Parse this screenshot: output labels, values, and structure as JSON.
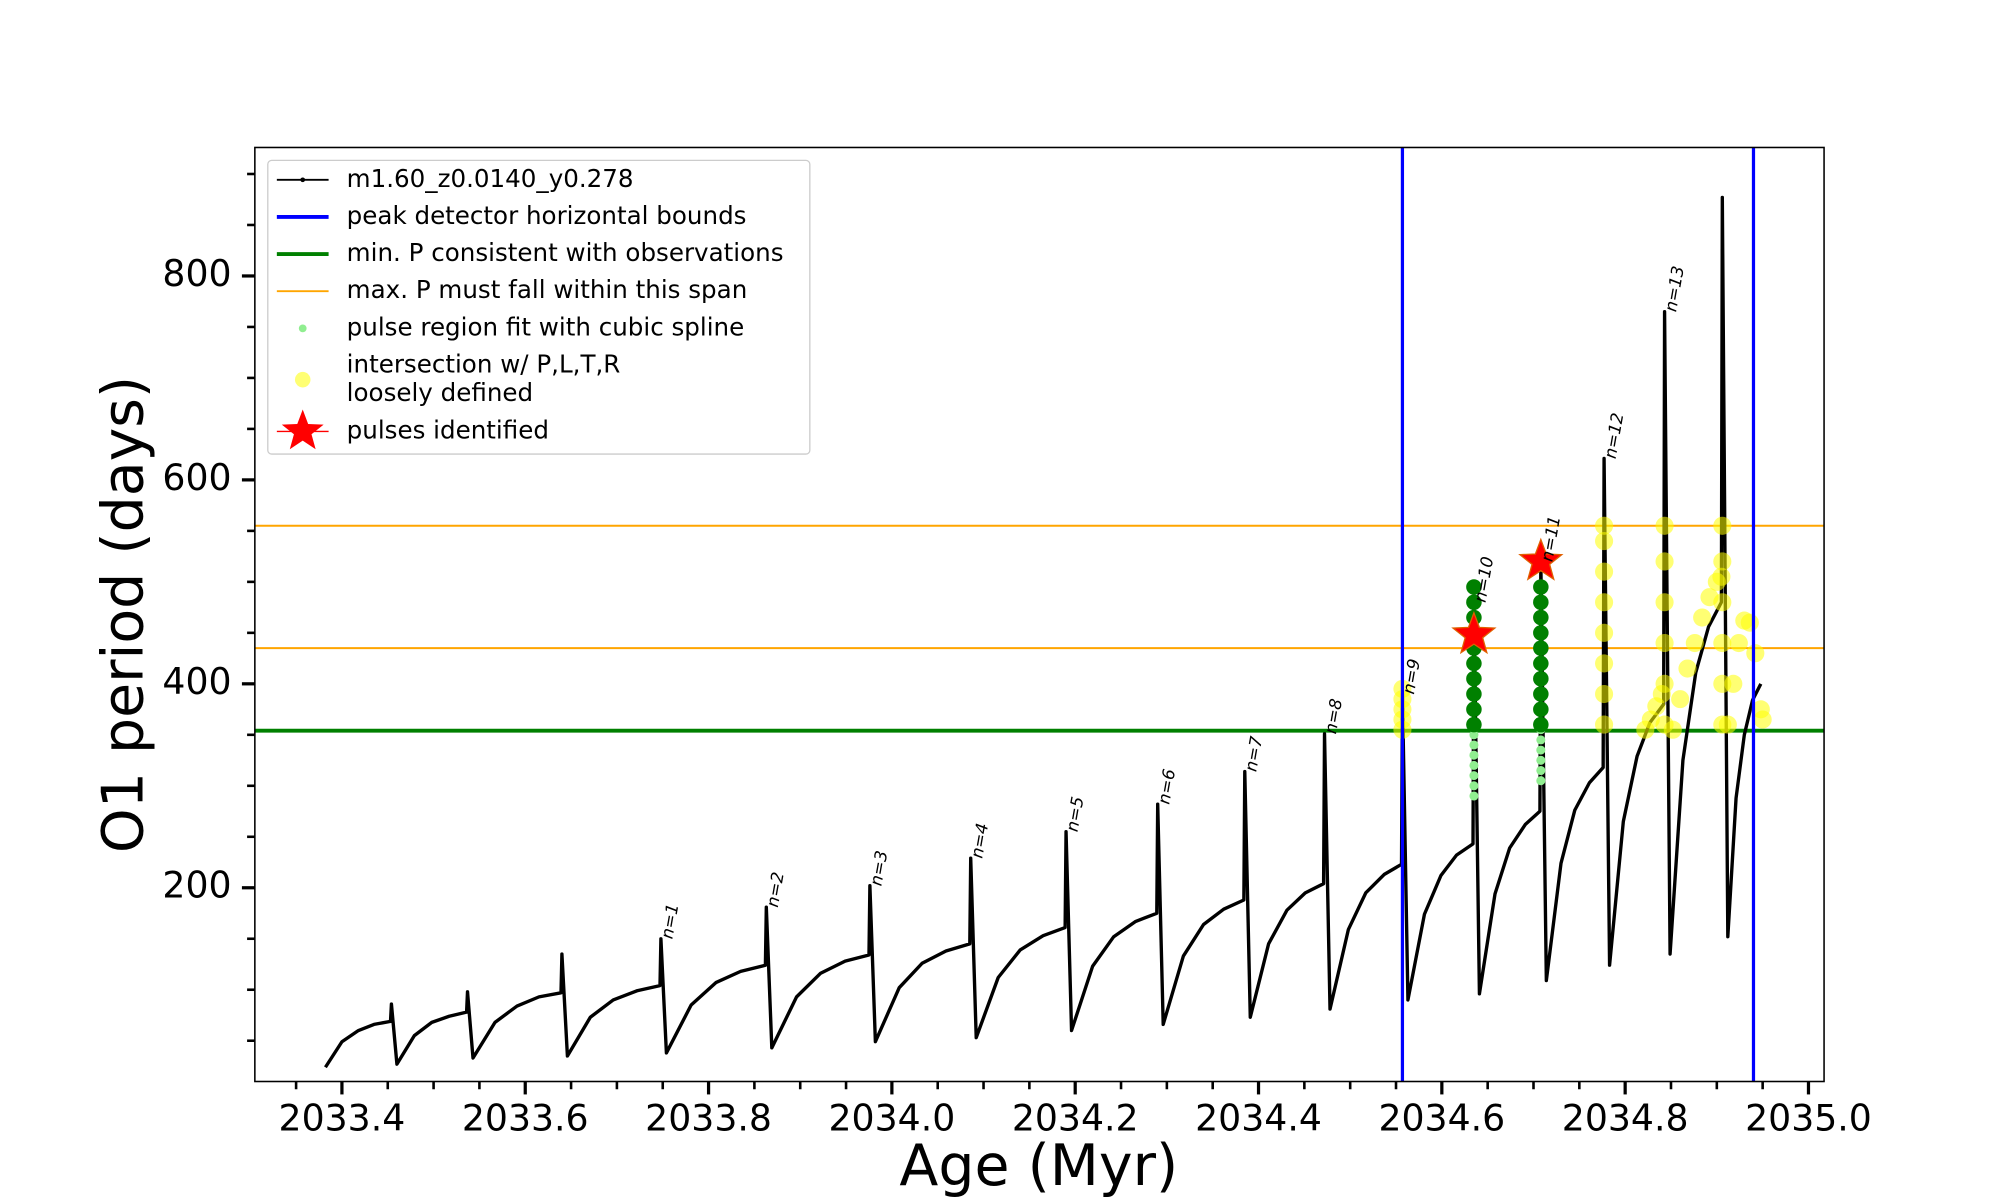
{
  "chart_data": {
    "type": "line",
    "x_label": "Age (Myr)",
    "y_label": "O1 period (days)",
    "xlim": [
      2033.305,
      2035.017
    ],
    "ylim": [
      10,
      926
    ],
    "xticks": [
      2033.4,
      2033.6,
      2033.8,
      {
        "value": 2034.0,
        "label": "2034.0"
      },
      2034.2,
      2034.4,
      2034.6,
      2034.8,
      {
        "value": 2035.0,
        "label": "2035.0"
      }
    ],
    "xminorticks": [
      2033.35,
      2033.45,
      2033.5,
      2033.55,
      2033.65,
      2033.7,
      2033.75,
      2033.85,
      2033.9,
      2033.95,
      2034.05,
      2034.1,
      2034.15,
      2034.25,
      2034.3,
      2034.35,
      2034.45,
      2034.5,
      2034.55,
      2034.65,
      2034.7,
      2034.75,
      2034.85,
      2034.9,
      2034.95
    ],
    "yticks": [
      200,
      400,
      600,
      800
    ],
    "yminorticks": [
      50,
      100,
      150,
      250,
      300,
      350,
      450,
      500,
      550,
      650,
      700,
      750,
      850,
      900
    ],
    "grid": false,
    "legend": "upper left",
    "series": [
      {
        "name": "m1.60_z0.0140_y0.278",
        "kind": "line",
        "color": "#000000",
        "x": [
          2033.382,
          2033.4,
          2033.418,
          2033.435,
          2033.453,
          2033.454,
          2033.46,
          2033.479,
          2033.498,
          2033.517,
          2033.536,
          2033.537,
          2033.543,
          2033.567,
          2033.591,
          2033.615,
          2033.639,
          2033.64,
          2033.646,
          2033.671,
          2033.696,
          2033.722,
          2033.747,
          2033.748,
          2033.754,
          2033.781,
          2033.808,
          2033.835,
          2033.862,
          2033.863,
          2033.869,
          2033.896,
          2033.922,
          2033.949,
          2033.975,
          2033.976,
          2033.982,
          2034.008,
          2034.033,
          2034.059,
          2034.085,
          2034.086,
          2034.092,
          2034.116,
          2034.14,
          2034.165,
          2034.189,
          2034.19,
          2034.196,
          2034.219,
          2034.242,
          2034.266,
          2034.289,
          2034.29,
          2034.296,
          2034.318,
          2034.34,
          2034.362,
          2034.384,
          2034.385,
          2034.391,
          2034.411,
          2034.431,
          2034.451,
          2034.471,
          2034.472,
          2034.478,
          2034.498,
          2034.517,
          2034.537,
          2034.556,
          2034.557,
          2034.563,
          2034.581,
          2034.599,
          2034.616,
          2034.634,
          2034.635,
          2034.641,
          2034.658,
          2034.674,
          2034.691,
          2034.707,
          2034.708,
          2034.714,
          2034.73,
          2034.745,
          2034.761,
          2034.776,
          2034.777,
          2034.783,
          2034.798,
          2034.813,
          2034.827,
          2034.842,
          2034.843,
          2034.849,
          2034.863,
          2034.877,
          2034.891,
          2034.905,
          2034.906,
          2034.912,
          2034.921,
          2034.93,
          2034.939,
          2034.948
        ],
        "values": [
          24,
          49,
          60,
          66,
          69,
          86,
          27,
          55,
          68,
          74,
          78,
          98,
          33,
          68,
          84,
          93,
          97,
          135,
          35,
          73,
          90,
          99,
          104,
          150,
          38,
          85,
          107,
          118,
          124,
          181,
          43,
          93,
          116,
          128,
          134,
          202,
          49,
          102,
          126,
          138,
          145,
          229,
          53,
          112,
          139,
          153,
          161,
          255,
          60,
          123,
          152,
          167,
          175,
          282,
          66,
          133,
          164,
          179,
          188,
          314,
          73,
          145,
          178,
          195,
          204,
          351,
          81,
          159,
          195,
          213,
          223,
          390,
          90,
          174,
          212,
          232,
          243,
          480,
          96,
          194,
          239,
          262,
          275,
          520,
          109,
          224,
          276,
          303,
          318,
          621,
          124,
          265,
          329,
          362,
          380,
          765,
          135,
          325,
          411,
          456,
          480,
          877,
          152,
          288,
          350,
          384,
          400
        ]
      },
      {
        "name": "peak detector horizontal bounds",
        "kind": "vline",
        "color": "#0000ff",
        "x": [
          2034.557,
          2034.94
        ]
      },
      {
        "name": "min. P consistent with observations",
        "kind": "hline",
        "color": "#008000",
        "values": [
          354
        ]
      },
      {
        "name": "max. P must fall within this span",
        "kind": "hline",
        "color": "#ffa500",
        "values": [
          435,
          555
        ]
      },
      {
        "name": "pulse region fit with cubic spline",
        "kind": "scatter",
        "color": "#90ee90",
        "x": [
          2034.635,
          2034.635,
          2034.635,
          2034.635,
          2034.635,
          2034.635,
          2034.635,
          2034.708,
          2034.708,
          2034.708,
          2034.708,
          2034.708,
          2034.708
        ],
        "values": [
          290,
          300,
          310,
          320,
          330,
          340,
          350,
          305,
          315,
          325,
          335,
          345,
          355
        ]
      },
      {
        "kind": "scatter",
        "color": "#008000",
        "x": [
          2034.635,
          2034.635,
          2034.635,
          2034.635,
          2034.635,
          2034.635,
          2034.635,
          2034.635,
          2034.635,
          2034.635,
          2034.708,
          2034.708,
          2034.708,
          2034.708,
          2034.708,
          2034.708,
          2034.708,
          2034.708,
          2034.708,
          2034.708
        ],
        "values": [
          360,
          375,
          390,
          405,
          420,
          435,
          450,
          465,
          480,
          495,
          360,
          375,
          390,
          405,
          420,
          435,
          450,
          465,
          480,
          495
        ]
      },
      {
        "name": [
          "intersection w/ P,L,T,R",
          "loosely defined"
        ],
        "kind": "scatter",
        "color": "#ffff00",
        "alpha": 0.55,
        "x": [
          2034.557,
          2034.557,
          2034.557,
          2034.557,
          2034.557,
          2034.777,
          2034.777,
          2034.777,
          2034.777,
          2034.777,
          2034.777,
          2034.777,
          2034.777,
          2034.822,
          2034.828,
          2034.834,
          2034.84,
          2034.843,
          2034.843,
          2034.843,
          2034.843,
          2034.843,
          2034.843,
          2034.852,
          2034.86,
          2034.868,
          2034.876,
          2034.884,
          2034.892,
          2034.9,
          2034.905,
          2034.906,
          2034.906,
          2034.906,
          2034.906,
          2034.906,
          2034.906,
          2034.912,
          2034.918,
          2034.924,
          2034.93,
          2034.936,
          2034.942,
          2034.948,
          2034.95
        ],
        "values": [
          355,
          365,
          375,
          385,
          395,
          360,
          390,
          420,
          450,
          480,
          510,
          540,
          555,
          355,
          365,
          378,
          390,
          360,
          400,
          440,
          480,
          520,
          555,
          355,
          385,
          415,
          440,
          465,
          485,
          500,
          505,
          360,
          400,
          440,
          480,
          520,
          555,
          360,
          400,
          440,
          462,
          460,
          430,
          375,
          365
        ]
      },
      {
        "name": "pulses identified",
        "kind": "star",
        "color": "#ff0000",
        "x": [
          2034.635,
          2034.708
        ],
        "values": [
          448,
          520
        ]
      }
    ],
    "annotations": [
      {
        "text": "n=1",
        "x": 2033.748,
        "y": 150
      },
      {
        "text": "n=2",
        "x": 2033.863,
        "y": 181
      },
      {
        "text": "n=3",
        "x": 2033.976,
        "y": 202
      },
      {
        "text": "n=4",
        "x": 2034.086,
        "y": 229
      },
      {
        "text": "n=5",
        "x": 2034.19,
        "y": 255
      },
      {
        "text": "n=6",
        "x": 2034.29,
        "y": 282
      },
      {
        "text": "n=7",
        "x": 2034.385,
        "y": 314
      },
      {
        "text": "n=8",
        "x": 2034.472,
        "y": 351
      },
      {
        "text": "n=9",
        "x": 2034.557,
        "y": 390
      },
      {
        "text": "n=10",
        "x": 2034.635,
        "y": 480
      },
      {
        "text": "n=11",
        "x": 2034.708,
        "y": 520
      },
      {
        "text": "n=12",
        "x": 2034.777,
        "y": 621
      },
      {
        "text": "n=13",
        "x": 2034.843,
        "y": 765
      }
    ]
  }
}
